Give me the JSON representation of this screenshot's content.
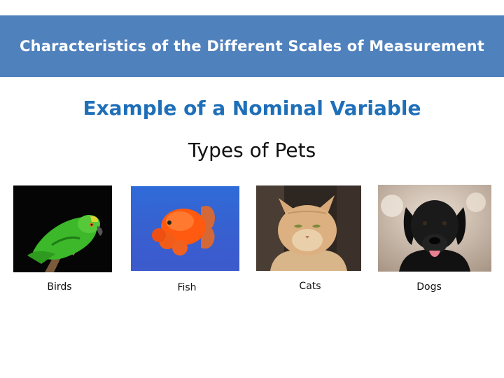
{
  "banner": {
    "title": "Characteristics of the Different Scales of Measurement"
  },
  "slide": {
    "heading": "Example of a Nominal Variable",
    "subheading": "Types of Pets"
  },
  "pets": [
    {
      "label": "Birds",
      "icon": "parrot-photo"
    },
    {
      "label": "Fish",
      "icon": "goldfish-photo"
    },
    {
      "label": "Cats",
      "icon": "cat-photo"
    },
    {
      "label": "Dogs",
      "icon": "dog-photo"
    }
  ],
  "colors": {
    "banner": "#4f81bd",
    "heading": "#1f6fb8"
  }
}
